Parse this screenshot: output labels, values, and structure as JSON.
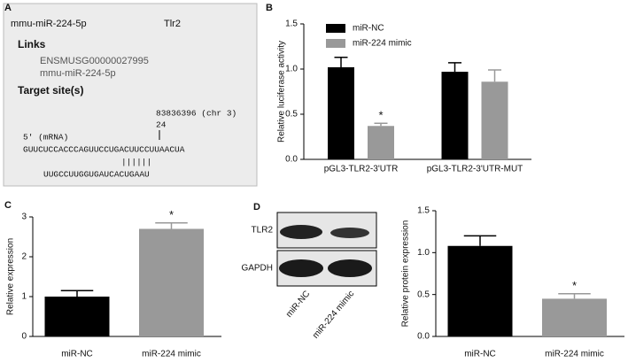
{
  "panel_labels": [
    "A",
    "B",
    "C",
    "D"
  ],
  "panel_a": {
    "mirna": "mmu-miR-224-5p",
    "gene": "Tlr2",
    "links_heading": "Links",
    "links": [
      "ENSMUSG00000027995",
      "mmu-miR-224-5p"
    ],
    "target_heading": "Target site(s)",
    "position": "83836396 (chr 3)",
    "offset": "24",
    "strand": "5' (mRNA)",
    "mrna": "GUUCUCCACCCAGUUCCUGACUUCCUUAACUA",
    "pairing": "||||||",
    "mirna_seq": "UUGCCUUGGUGAUCACUGAAU"
  },
  "blot": {
    "rows": [
      "TLR2",
      "GAPDH"
    ],
    "lanes": [
      "miR-NC",
      "miR-224 mimic"
    ]
  },
  "chart_data": [
    {
      "type": "bar",
      "y_label": "Relative luciferase activity",
      "categories": [
        "pGL3-TLR2-3'UTR",
        "pGL3-TLR2-3'UTR-MUT"
      ],
      "series": [
        {
          "name": "miR-NC",
          "color": "#000000",
          "values": [
            1.02,
            0.97
          ],
          "errors": [
            0.11,
            0.1
          ],
          "stars": [
            null,
            null
          ]
        },
        {
          "name": "miR-224 mimic",
          "color": "#999999",
          "values": [
            0.37,
            0.86
          ],
          "errors": [
            0.03,
            0.13
          ],
          "stars": [
            "*",
            null
          ]
        }
      ],
      "ylim": [
        0,
        1.5
      ],
      "yticks": [
        {
          "value": 0,
          "label": "0.0"
        },
        {
          "value": 0.5,
          "label": "0.5"
        },
        {
          "value": 1,
          "label": "1.0"
        },
        {
          "value": 1.5,
          "label": "1.5"
        }
      ],
      "legend": "top-left"
    },
    {
      "type": "bar",
      "y_label": "Relative expression",
      "categories": [
        "miR-NC",
        "miR-224 mimic"
      ],
      "values": [
        1.0,
        2.7
      ],
      "errors": [
        0.15,
        0.15
      ],
      "stars": [
        null,
        "*"
      ],
      "colors": [
        "#000000",
        "#999999"
      ],
      "ylim": [
        0,
        3
      ],
      "yticks": [
        0,
        1,
        2,
        3
      ]
    },
    {
      "type": "bar",
      "y_label": "Relative protein expression",
      "categories": [
        "miR-NC",
        "miR-224 mimic"
      ],
      "values": [
        1.08,
        0.45
      ],
      "errors": [
        0.12,
        0.06
      ],
      "stars": [
        null,
        "*"
      ],
      "colors": [
        "#000000",
        "#999999"
      ],
      "ylim": [
        0,
        1.5
      ],
      "yticks": [
        {
          "value": 0,
          "label": "0.0"
        },
        {
          "value": 0.5,
          "label": "0.5"
        },
        {
          "value": 1,
          "label": "1.0"
        },
        {
          "value": 1.5,
          "label": "1.5"
        }
      ]
    }
  ]
}
